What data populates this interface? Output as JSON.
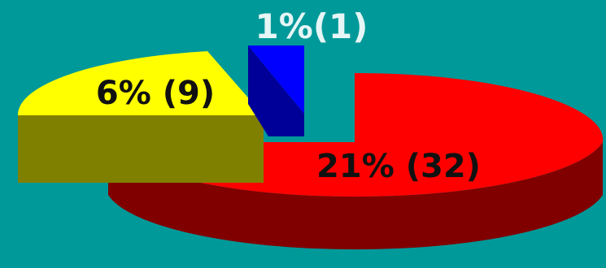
{
  "chart_data": {
    "type": "pie",
    "style": "3d-exploded-partial",
    "slices": [
      {
        "label": "1%(1)",
        "percent": 1,
        "count": 1,
        "color": "#0000FF",
        "side_color": "#000099"
      },
      {
        "label": "6% (9)",
        "percent": 6,
        "count": 9,
        "color": "#FFFF00",
        "side_color": "#808000"
      },
      {
        "label": "21% (32)",
        "percent": 21,
        "count": 32,
        "color": "#FF0000",
        "side_color": "#800000"
      }
    ],
    "label_colors": {
      "1%(1)": "#E6F5F5",
      "6% (9)": "#111111",
      "21% (32)": "#111111"
    },
    "background": "#009999"
  }
}
